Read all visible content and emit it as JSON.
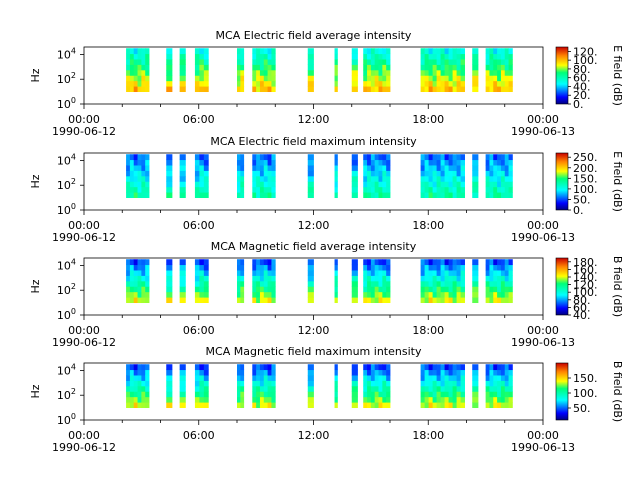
{
  "chart_data": [
    {
      "type": "heatmap",
      "title": "MCA  Electric field average intensity",
      "ylabel": "Hz",
      "colorbar_label": "E field (dB)",
      "colorbar_ticks": [
        "0.",
        "20.",
        "40.",
        "60.",
        "80.",
        "100.",
        "120."
      ],
      "colorbar_range": [
        0,
        130
      ],
      "color_theme": "warm",
      "y_ticks": [
        {
          "label": "10",
          "exp": "0"
        },
        {
          "label": "10",
          "exp": "2"
        },
        {
          "label": "10",
          "exp": "4"
        }
      ],
      "ylim_log10": [
        0,
        4.6
      ],
      "xlim_hours": [
        0,
        24
      ],
      "x_ticks": [
        {
          "time": "00:00",
          "date": "1990-06-12"
        },
        {
          "time": "06:00",
          "date": ""
        },
        {
          "time": "12:00",
          "date": ""
        },
        {
          "time": "18:00",
          "date": ""
        },
        {
          "time": "00:00",
          "date": "1990-06-13"
        }
      ],
      "data_intervals_hours": [
        [
          2.2,
          3.4
        ],
        [
          4.3,
          4.6
        ],
        [
          5.0,
          5.3
        ],
        [
          5.8,
          6.5
        ],
        [
          8.0,
          8.35
        ],
        [
          8.8,
          10.0
        ],
        [
          11.7,
          12.0
        ],
        [
          13.1,
          13.25
        ],
        [
          14.0,
          14.3
        ],
        [
          14.6,
          16.0
        ],
        [
          17.6,
          19.9
        ],
        [
          20.3,
          20.6
        ],
        [
          21.0,
          22.4
        ]
      ],
      "freq_range_log10": [
        1.0,
        4.5
      ]
    },
    {
      "type": "heatmap",
      "title": "MCA  Electric field maximum intensity",
      "ylabel": "Hz",
      "colorbar_label": "E field (dB)",
      "colorbar_ticks": [
        "0.",
        "50.",
        "100.",
        "150.",
        "200.",
        "250."
      ],
      "colorbar_range": [
        0,
        270
      ],
      "color_theme": "cool",
      "y_ticks": [
        {
          "label": "10",
          "exp": "0"
        },
        {
          "label": "10",
          "exp": "2"
        },
        {
          "label": "10",
          "exp": "4"
        }
      ],
      "ylim_log10": [
        0,
        4.6
      ],
      "xlim_hours": [
        0,
        24
      ],
      "x_ticks": [
        {
          "time": "00:00",
          "date": "1990-06-12"
        },
        {
          "time": "06:00",
          "date": ""
        },
        {
          "time": "12:00",
          "date": ""
        },
        {
          "time": "18:00",
          "date": ""
        },
        {
          "time": "00:00",
          "date": "1990-06-13"
        }
      ],
      "data_intervals_hours": [
        [
          2.2,
          3.4
        ],
        [
          4.3,
          4.6
        ],
        [
          5.0,
          5.3
        ],
        [
          5.8,
          6.5
        ],
        [
          8.0,
          8.35
        ],
        [
          8.8,
          10.0
        ],
        [
          11.7,
          12.0
        ],
        [
          13.1,
          13.25
        ],
        [
          14.0,
          14.3
        ],
        [
          14.6,
          16.0
        ],
        [
          17.6,
          19.9
        ],
        [
          20.3,
          20.6
        ],
        [
          21.0,
          22.4
        ]
      ],
      "freq_range_log10": [
        1.0,
        4.5
      ]
    },
    {
      "type": "heatmap",
      "title": "MCA  Magnetic field average intensity",
      "ylabel": "Hz",
      "colorbar_label": "B field (dB)",
      "colorbar_ticks": [
        "40.",
        "60.",
        "80.",
        "100.",
        "120.",
        "140.",
        "160.",
        "180."
      ],
      "colorbar_range": [
        40,
        190
      ],
      "color_theme": "magnetic",
      "y_ticks": [
        {
          "label": "10",
          "exp": "0"
        },
        {
          "label": "10",
          "exp": "2"
        },
        {
          "label": "10",
          "exp": "4"
        }
      ],
      "ylim_log10": [
        0,
        4.6
      ],
      "xlim_hours": [
        0,
        24
      ],
      "x_ticks": [
        {
          "time": "00:00",
          "date": "1990-06-12"
        },
        {
          "time": "06:00",
          "date": ""
        },
        {
          "time": "12:00",
          "date": ""
        },
        {
          "time": "18:00",
          "date": ""
        },
        {
          "time": "00:00",
          "date": "1990-06-13"
        }
      ],
      "data_intervals_hours": [
        [
          2.2,
          3.4
        ],
        [
          4.3,
          4.6
        ],
        [
          5.0,
          5.3
        ],
        [
          5.8,
          6.5
        ],
        [
          8.0,
          8.35
        ],
        [
          8.8,
          10.0
        ],
        [
          11.7,
          12.0
        ],
        [
          13.1,
          13.25
        ],
        [
          14.0,
          14.3
        ],
        [
          14.6,
          16.0
        ],
        [
          17.6,
          19.9
        ],
        [
          20.3,
          20.6
        ],
        [
          21.0,
          22.4
        ]
      ],
      "freq_range_log10": [
        1.0,
        4.5
      ]
    },
    {
      "type": "heatmap",
      "title": "MCA  Magnetic field maximum intensity",
      "ylabel": "Hz",
      "colorbar_label": "B field (dB)",
      "colorbar_ticks": [
        "50.",
        "100.",
        "150."
      ],
      "colorbar_range": [
        10,
        200
      ],
      "color_theme": "magnetic",
      "y_ticks": [
        {
          "label": "10",
          "exp": "0"
        },
        {
          "label": "10",
          "exp": "2"
        },
        {
          "label": "10",
          "exp": "4"
        }
      ],
      "ylim_log10": [
        0,
        4.6
      ],
      "xlim_hours": [
        0,
        24
      ],
      "x_ticks": [
        {
          "time": "00:00",
          "date": "1990-06-12"
        },
        {
          "time": "06:00",
          "date": ""
        },
        {
          "time": "12:00",
          "date": ""
        },
        {
          "time": "18:00",
          "date": ""
        },
        {
          "time": "00:00",
          "date": "1990-06-13"
        }
      ],
      "data_intervals_hours": [
        [
          2.2,
          3.4
        ],
        [
          4.3,
          4.6
        ],
        [
          5.0,
          5.3
        ],
        [
          5.8,
          6.5
        ],
        [
          8.0,
          8.35
        ],
        [
          8.8,
          10.0
        ],
        [
          11.7,
          12.0
        ],
        [
          13.1,
          13.25
        ],
        [
          14.0,
          14.3
        ],
        [
          14.6,
          16.0
        ],
        [
          17.6,
          19.9
        ],
        [
          20.3,
          20.6
        ],
        [
          21.0,
          22.4
        ]
      ],
      "freq_range_log10": [
        1.0,
        4.5
      ]
    }
  ]
}
